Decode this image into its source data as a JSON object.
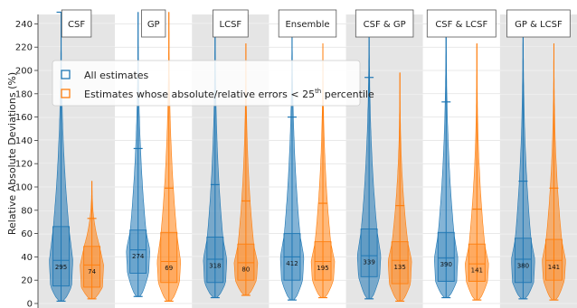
{
  "chart_data": {
    "type": "violin",
    "ylabel": "Relative Absolute Deviations (%)",
    "ylim": [
      0,
      250
    ],
    "yticks": [
      "0",
      "20",
      "40",
      "60",
      "80",
      "100",
      "120",
      "140",
      "160",
      "180",
      "200",
      "220",
      "240"
    ],
    "grid": true,
    "legend": {
      "placement": "top-left",
      "entries": [
        {
          "label": "All estimates",
          "color": "#1f77b4"
        },
        {
          "label_prefix": "Estimates whose absolute/relative errors < 25",
          "label_sup": "th",
          "label_suffix": " percentile",
          "color": "#ff7f0e"
        }
      ]
    },
    "colors": {
      "all": "#1f77b4",
      "best": "#ff7f0e",
      "band": "#e5e5e5"
    },
    "categories": [
      "CSF",
      "GP",
      "LCSF",
      "Ensemble",
      "CSF & GP",
      "CSF & LCSF",
      "GP & LCSF"
    ],
    "series": [
      {
        "name": "All estimates",
        "counts": [
          "295",
          "274",
          "318",
          "412",
          "339",
          "390",
          "380"
        ],
        "q1": [
          15,
          26,
          18,
          20,
          23,
          19,
          18
        ],
        "median": [
          37,
          46,
          38,
          40,
          41,
          39,
          38
        ],
        "q3": [
          66,
          63,
          57,
          60,
          64,
          61,
          56
        ],
        "whisker_low": [
          2,
          6,
          5,
          3,
          4,
          5,
          4
        ],
        "whisker_high": [
          250,
          133,
          102,
          160,
          194,
          173,
          105
        ],
        "max": [
          250,
          250,
          250,
          250,
          250,
          250,
          250
        ]
      },
      {
        "name": "Estimates whose absolute/relative errors < 25th percentile",
        "counts": [
          "74",
          "69",
          "80",
          "195",
          "135",
          "141",
          "141"
        ],
        "q1": [
          14,
          18,
          20,
          20,
          17,
          19,
          20
        ],
        "median": [
          33,
          36,
          35,
          36,
          37,
          34,
          37
        ],
        "q3": [
          49,
          61,
          51,
          53,
          53,
          51,
          55
        ],
        "whisker_low": [
          4,
          2,
          7,
          5,
          2,
          3,
          3
        ],
        "whisker_high": [
          73,
          99,
          88,
          86,
          84,
          81,
          99
        ],
        "max": [
          105,
          250,
          223,
          223,
          198,
          223,
          223
        ]
      }
    ]
  }
}
